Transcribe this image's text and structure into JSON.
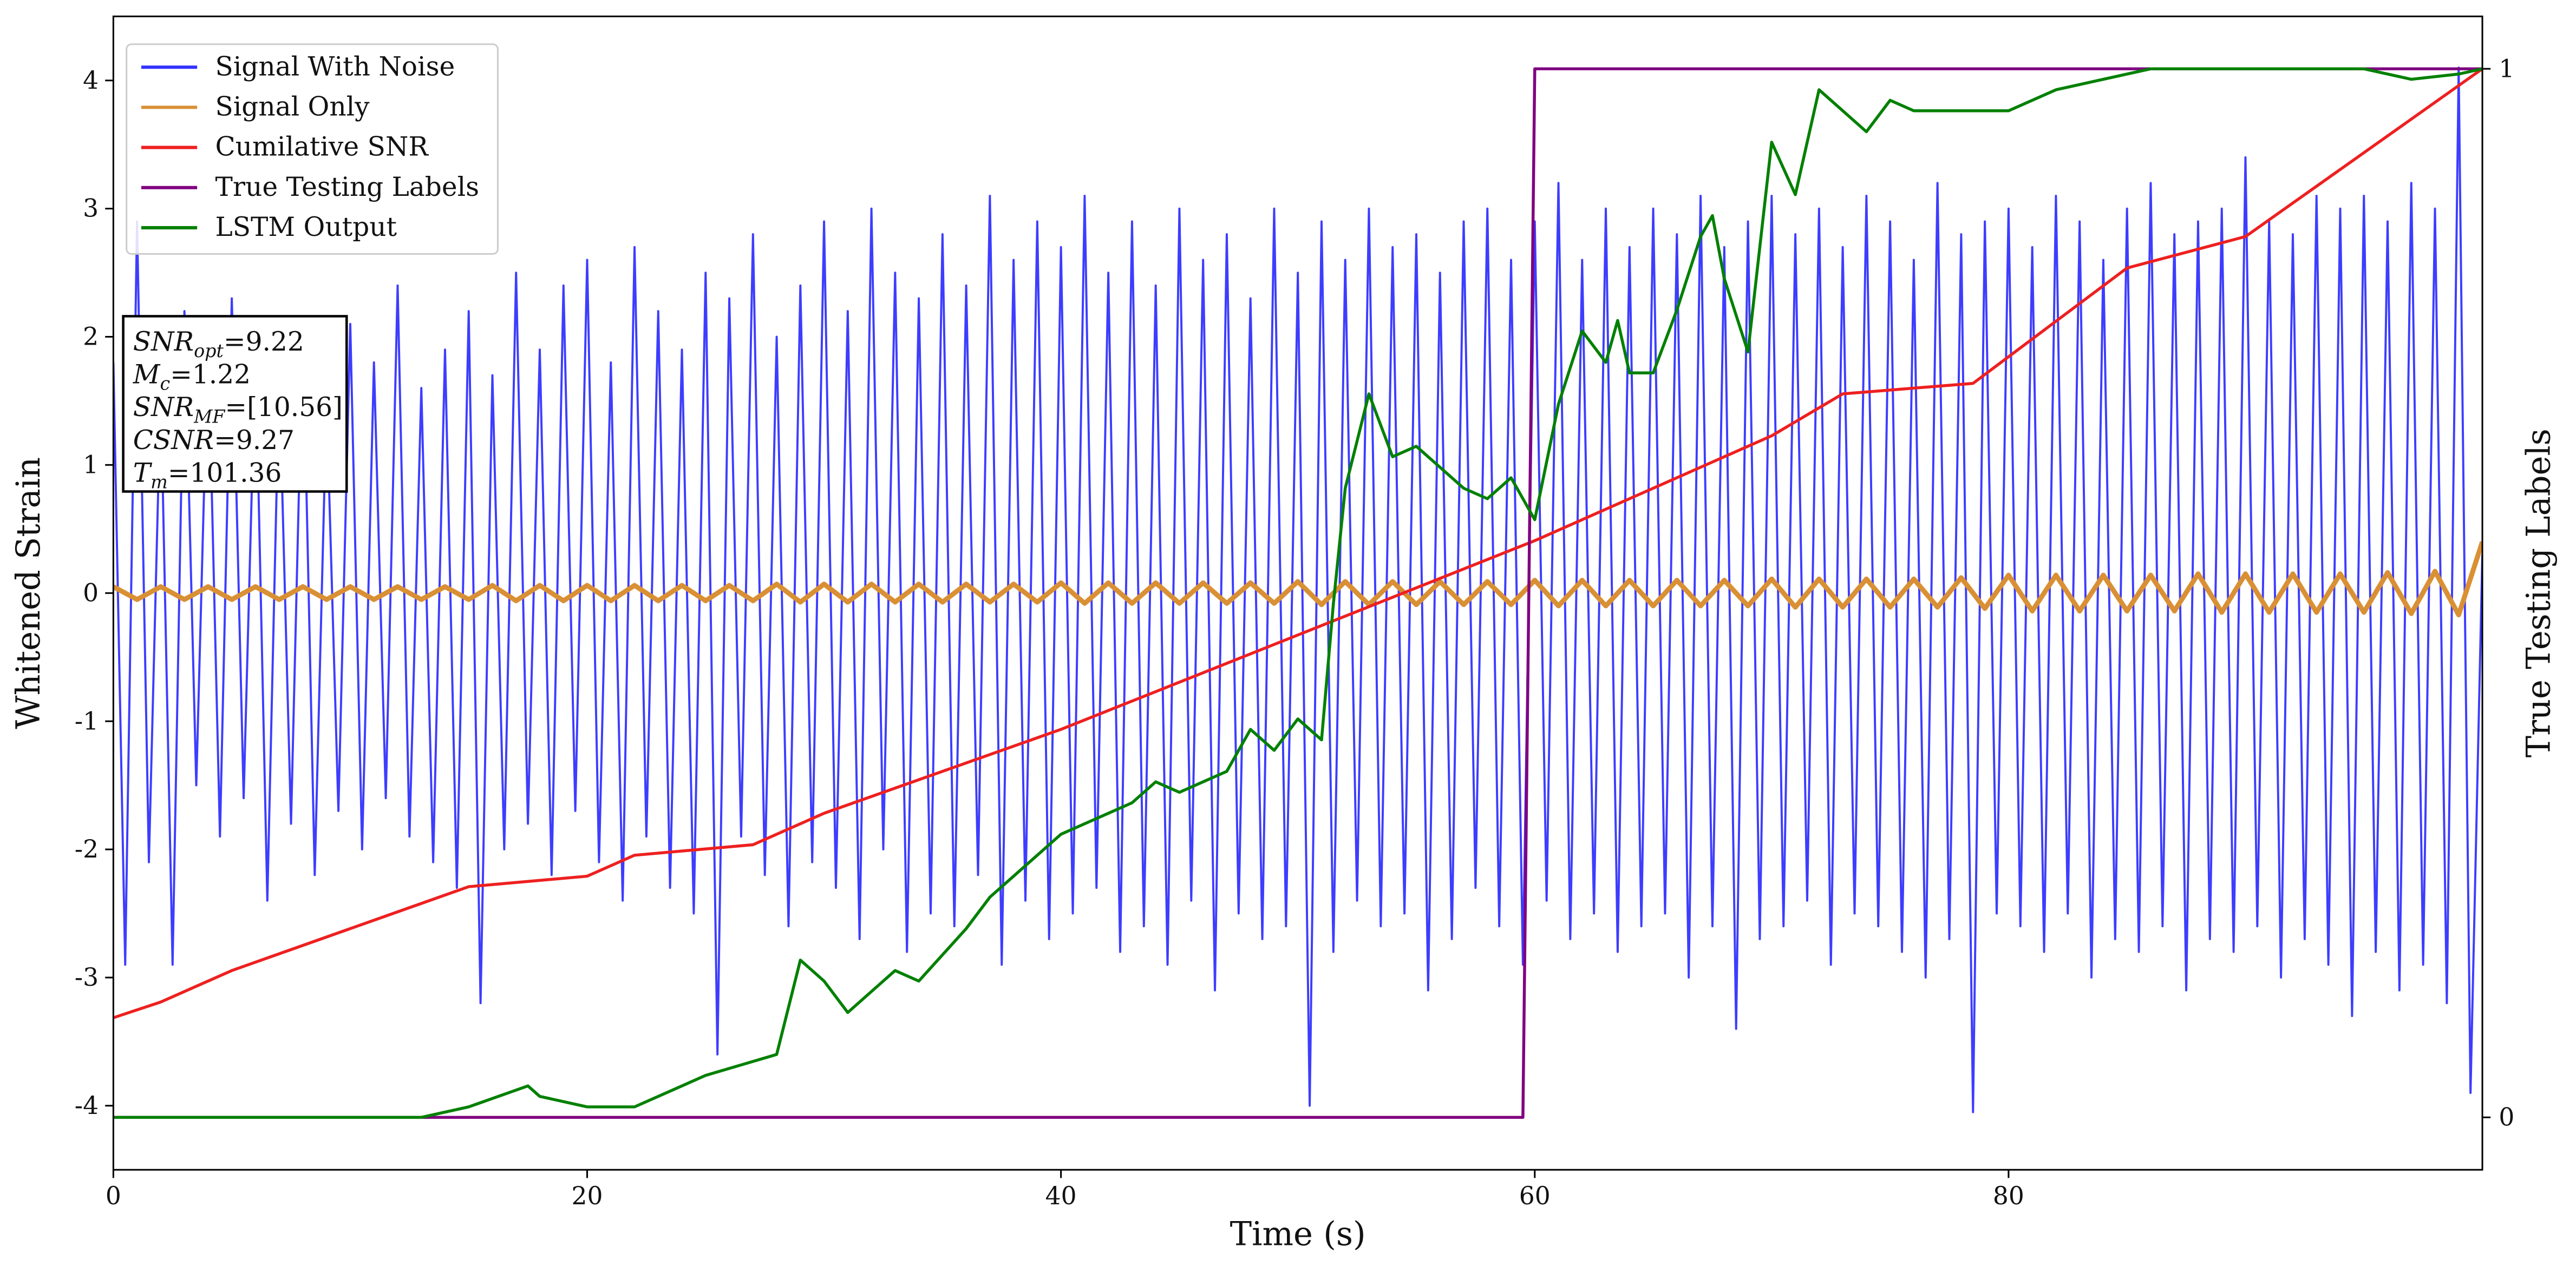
{
  "chart_data": {
    "type": "line",
    "xlabel": "Time (s)",
    "ylabel": "Whitened Strain",
    "y2label": "True Testing Labels",
    "xlim": [
      0,
      100
    ],
    "xticks": [
      0,
      20,
      40,
      60,
      80
    ],
    "ylim": [
      -4.5,
      4.5
    ],
    "yticks": [
      -4,
      -3,
      -2,
      -1,
      0,
      1,
      2,
      3,
      4
    ],
    "y2lim": [
      -0.05,
      1.05
    ],
    "y2ticks": [
      0,
      1
    ],
    "legend": "upper left",
    "annotation": [
      {
        "base": "SNR",
        "sub": "opt",
        "text": "=9.22"
      },
      {
        "base": "M",
        "sub": "c",
        "text": "=1.22"
      },
      {
        "base": "SNR",
        "sub": "MF",
        "text": "=[10.56]"
      },
      {
        "base": "CSNR",
        "sub": null,
        "text": "=9.27"
      },
      {
        "base": "T",
        "sub": "m",
        "text": "=101.36"
      }
    ],
    "series": [
      {
        "name": "Signal With Noise",
        "color": "#3333ff",
        "axis": "y",
        "x": [
          0,
          0.5,
          1,
          1.5,
          2,
          2.5,
          3,
          3.5,
          4,
          4.5,
          5,
          5.5,
          6,
          6.5,
          7,
          7.5,
          8,
          8.5,
          9,
          9.5,
          10,
          10.5,
          11,
          11.5,
          12,
          12.5,
          13,
          13.5,
          14,
          14.5,
          15,
          15.5,
          16,
          16.5,
          17,
          17.5,
          18,
          18.5,
          19,
          19.5,
          20,
          20.5,
          21,
          21.5,
          22,
          22.5,
          23,
          23.5,
          24,
          24.5,
          25,
          25.5,
          26,
          26.5,
          27,
          27.5,
          28,
          28.5,
          29,
          29.5,
          30,
          30.5,
          31,
          31.5,
          32,
          32.5,
          33,
          33.5,
          34,
          34.5,
          35,
          35.5,
          36,
          36.5,
          37,
          37.5,
          38,
          38.5,
          39,
          39.5,
          40,
          40.5,
          41,
          41.5,
          42,
          42.5,
          43,
          43.5,
          44,
          44.5,
          45,
          45.5,
          46,
          46.5,
          47,
          47.5,
          48,
          48.5,
          49,
          49.5,
          50,
          50.5,
          51,
          51.5,
          52,
          52.5,
          53,
          53.5,
          54,
          54.5,
          55,
          55.5,
          56,
          56.5,
          57,
          57.5,
          58,
          58.5,
          59,
          59.5,
          60,
          60.5,
          61,
          61.5,
          62,
          62.5,
          63,
          63.5,
          64,
          64.5,
          65,
          65.5,
          66,
          66.5,
          67,
          67.5,
          68,
          68.5,
          69,
          69.5,
          70,
          70.5,
          71,
          71.5,
          72,
          72.5,
          73,
          73.5,
          74,
          74.5,
          75,
          75.5,
          76,
          76.5,
          77,
          77.5,
          78,
          78.5,
          79,
          79.5,
          80,
          80.5,
          81,
          81.5,
          82,
          82.5,
          83,
          83.5,
          84,
          84.5,
          85,
          85.5,
          86,
          86.5,
          87,
          87.5,
          88,
          88.5,
          89,
          89.5,
          90,
          90.5,
          91,
          91.5,
          92,
          92.5,
          93,
          93.5,
          94,
          94.5,
          95,
          95.5,
          96,
          96.5,
          97,
          97.5,
          98,
          98.5,
          99,
          99.5,
          100
        ],
        "values": [
          1.8,
          -2.9,
          2.9,
          -2.1,
          1.6,
          -2.9,
          2.2,
          -1.5,
          2.0,
          -1.9,
          2.3,
          -1.6,
          1.9,
          -2.4,
          1.7,
          -1.8,
          2.1,
          -2.2,
          1.5,
          -1.7,
          2.1,
          -2.0,
          1.8,
          -1.6,
          2.4,
          -1.9,
          1.6,
          -2.1,
          1.9,
          -2.3,
          2.2,
          -3.2,
          1.7,
          -2.0,
          2.5,
          -1.8,
          1.9,
          -2.2,
          2.4,
          -1.7,
          2.6,
          -2.1,
          1.8,
          -2.4,
          2.7,
          -1.9,
          2.2,
          -2.3,
          1.9,
          -2.5,
          2.5,
          -3.6,
          2.3,
          -1.9,
          2.8,
          -2.2,
          2.0,
          -2.6,
          2.4,
          -2.1,
          2.9,
          -2.3,
          2.2,
          -2.7,
          3.0,
          -2.0,
          2.5,
          -2.8,
          2.3,
          -2.5,
          2.8,
          -2.6,
          2.4,
          -2.2,
          3.1,
          -2.9,
          2.6,
          -2.4,
          2.9,
          -2.7,
          2.7,
          -2.5,
          3.1,
          -2.3,
          2.5,
          -2.8,
          2.9,
          -2.6,
          2.4,
          -2.9,
          3.0,
          -2.4,
          2.6,
          -3.1,
          2.8,
          -2.5,
          2.3,
          -2.7,
          3.0,
          -2.6,
          2.5,
          -4.0,
          2.9,
          -2.8,
          2.6,
          -2.4,
          3.0,
          -2.6,
          2.7,
          -2.5,
          2.8,
          -3.1,
          2.5,
          -2.7,
          2.9,
          -2.3,
          3.0,
          -2.6,
          2.6,
          -2.9,
          2.9,
          -2.4,
          3.2,
          -2.7,
          2.6,
          -2.5,
          3.0,
          -2.8,
          2.7,
          -2.6,
          3.0,
          -2.5,
          2.8,
          -3.0,
          3.1,
          -2.6,
          2.7,
          -3.4,
          2.9,
          -2.7,
          3.1,
          -2.6,
          2.8,
          -2.4,
          3.0,
          -2.9,
          2.7,
          -2.5,
          3.1,
          -2.6,
          2.9,
          -2.8,
          2.6,
          -3.0,
          3.2,
          -2.7,
          2.8,
          -4.05,
          2.9,
          -2.5,
          3.0,
          -2.6,
          2.7,
          -2.8,
          3.1,
          -2.5,
          2.9,
          -3.0,
          2.6,
          -2.7,
          3.0,
          -2.8,
          3.2,
          -2.6,
          2.8,
          -3.1,
          2.9,
          -2.7,
          3.0,
          -2.8,
          3.4,
          -2.6,
          2.9,
          -3.0,
          2.8,
          -2.7,
          3.1,
          -2.9,
          3.0,
          -3.3,
          3.1,
          -2.8,
          2.9,
          -3.1,
          3.2,
          -2.9,
          3.0,
          -3.2,
          4.1,
          -3.9,
          0.3
        ]
      },
      {
        "name": "Signal Only",
        "color": "#d99035",
        "axis": "y",
        "x": [
          0,
          1,
          2,
          3,
          4,
          5,
          6,
          7,
          8,
          9,
          10,
          11,
          12,
          13,
          14,
          15,
          16,
          17,
          18,
          19,
          20,
          21,
          22,
          23,
          24,
          25,
          26,
          27,
          28,
          29,
          30,
          31,
          32,
          33,
          34,
          35,
          36,
          37,
          38,
          39,
          40,
          41,
          42,
          43,
          44,
          45,
          46,
          47,
          48,
          49,
          50,
          51,
          52,
          53,
          54,
          55,
          56,
          57,
          58,
          59,
          60,
          61,
          62,
          63,
          64,
          65,
          66,
          67,
          68,
          69,
          70,
          71,
          72,
          73,
          74,
          75,
          76,
          77,
          78,
          79,
          80,
          81,
          82,
          83,
          84,
          85,
          86,
          87,
          88,
          89,
          90,
          91,
          92,
          93,
          94,
          95,
          96,
          97,
          98,
          99,
          100
        ],
        "values": [
          0.05,
          -0.05,
          0.05,
          -0.05,
          0.05,
          -0.05,
          0.05,
          -0.05,
          0.05,
          -0.05,
          0.05,
          -0.05,
          0.05,
          -0.05,
          0.05,
          -0.05,
          0.06,
          -0.06,
          0.06,
          -0.06,
          0.06,
          -0.06,
          0.06,
          -0.06,
          0.06,
          -0.06,
          0.06,
          -0.06,
          0.07,
          -0.07,
          0.07,
          -0.07,
          0.07,
          -0.07,
          0.07,
          -0.07,
          0.07,
          -0.07,
          0.07,
          -0.07,
          0.08,
          -0.08,
          0.08,
          -0.08,
          0.08,
          -0.08,
          0.08,
          -0.08,
          0.08,
          -0.08,
          0.09,
          -0.09,
          0.09,
          -0.09,
          0.09,
          -0.09,
          0.09,
          -0.09,
          0.09,
          -0.09,
          0.1,
          -0.1,
          0.1,
          -0.1,
          0.1,
          -0.1,
          0.1,
          -0.1,
          0.1,
          -0.1,
          0.11,
          -0.11,
          0.11,
          -0.11,
          0.11,
          -0.11,
          0.11,
          -0.11,
          0.12,
          -0.12,
          0.14,
          -0.14,
          0.14,
          -0.14,
          0.14,
          -0.14,
          0.14,
          -0.14,
          0.15,
          -0.15,
          0.15,
          -0.15,
          0.15,
          -0.15,
          0.15,
          -0.15,
          0.16,
          -0.16,
          0.17,
          -0.17,
          0.4
        ]
      },
      {
        "name": "Cumilative SNR",
        "color": "#ee2020",
        "axis": "y2",
        "x": [
          0,
          2,
          5,
          10,
          15,
          20,
          22,
          27,
          30,
          40,
          50,
          60,
          70,
          73,
          78.5,
          85,
          90,
          95,
          100
        ],
        "values": [
          0.095,
          0.11,
          0.14,
          0.18,
          0.22,
          0.23,
          0.25,
          0.26,
          0.29,
          0.37,
          0.46,
          0.55,
          0.65,
          0.69,
          0.7,
          0.81,
          0.84,
          0.92,
          1.0
        ]
      },
      {
        "name": "True Testing Labels",
        "color": "#800080",
        "axis": "y2",
        "x": [
          0,
          59.5,
          60,
          100
        ],
        "values": [
          0,
          0,
          1,
          1
        ]
      },
      {
        "name": "LSTM Output",
        "color": "#008000",
        "axis": "y2",
        "x": [
          0,
          13,
          15,
          17.5,
          18,
          20,
          22,
          25,
          28,
          29,
          30,
          31,
          33,
          34,
          36,
          37,
          38,
          39,
          40,
          41,
          43,
          44,
          45,
          46,
          47,
          48,
          49,
          50,
          51,
          51.5,
          52,
          53,
          54,
          55,
          57,
          58,
          59,
          60,
          61,
          62,
          63,
          63.5,
          64,
          65,
          66,
          67,
          67.5,
          68,
          69,
          70,
          71,
          72,
          73,
          74,
          75,
          76,
          78,
          80,
          82,
          84,
          86,
          90,
          95,
          97,
          99,
          100
        ],
        "values": [
          0,
          0,
          0.01,
          0.03,
          0.02,
          0.01,
          0.01,
          0.04,
          0.06,
          0.15,
          0.13,
          0.1,
          0.14,
          0.13,
          0.18,
          0.21,
          0.23,
          0.25,
          0.27,
          0.28,
          0.3,
          0.32,
          0.31,
          0.32,
          0.33,
          0.37,
          0.35,
          0.38,
          0.36,
          0.49,
          0.6,
          0.69,
          0.63,
          0.64,
          0.6,
          0.59,
          0.61,
          0.57,
          0.68,
          0.75,
          0.72,
          0.76,
          0.71,
          0.71,
          0.77,
          0.84,
          0.86,
          0.8,
          0.73,
          0.93,
          0.88,
          0.98,
          0.96,
          0.94,
          0.97,
          0.96,
          0.96,
          0.96,
          0.98,
          0.99,
          1.0,
          1.0,
          1.0,
          0.99,
          0.995,
          1.0
        ]
      }
    ]
  }
}
